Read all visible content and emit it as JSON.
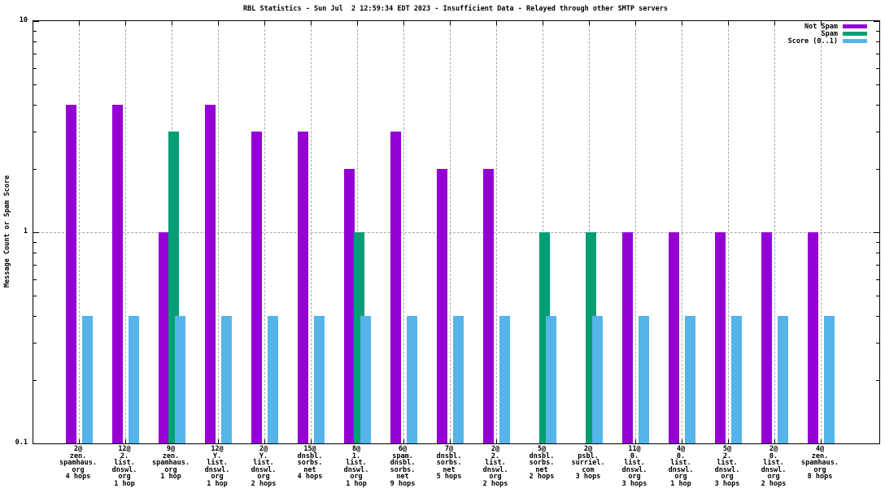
{
  "chart_data": {
    "type": "bar",
    "title": "RBL Statistics - Sun Jul  2 12:59:34 EDT 2023 - Insufficient Data - Relayed through other SMTP servers",
    "ylabel": "Message Count or Spam Score",
    "xlabel": "",
    "y_scale": "log10",
    "ylim": [
      0.1,
      10
    ],
    "yticks": [
      {
        "label": "0.1",
        "value": 0.1
      },
      {
        "label": "1",
        "value": 1
      },
      {
        "label": "10",
        "value": 10
      }
    ],
    "grid": true,
    "gridline_at_y": 1,
    "legend_position": "top-right-inside",
    "axis_color": "#000000",
    "grid_color": "#a9a9a9",
    "categories": [
      [
        "2@",
        "zen.",
        "spamhaus.",
        "org",
        "4 hops"
      ],
      [
        "12@",
        "2.",
        "list.",
        "dnswl.",
        "org",
        "1 hop"
      ],
      [
        "9@",
        "zen.",
        "spamhaus.",
        "org",
        "1 hop"
      ],
      [
        "12@",
        "Y.",
        "list.",
        "dnswl.",
        "org",
        "1 hop"
      ],
      [
        "2@",
        "Y.",
        "list.",
        "dnswl.",
        "org",
        "2 hops"
      ],
      [
        "15@",
        "dnsbl.",
        "sorbs.",
        "net",
        "4 hops"
      ],
      [
        "8@",
        "1.",
        "list.",
        "dnswl.",
        "org",
        "1 hop"
      ],
      [
        "6@",
        "spam.",
        "dnsbl.",
        "sorbs.",
        "net",
        "9 hops"
      ],
      [
        "7@",
        "dnsbl.",
        "sorbs.",
        "net",
        "5 hops"
      ],
      [
        "2@",
        "2.",
        "list.",
        "dnswl.",
        "org",
        "2 hops"
      ],
      [
        "5@",
        "dnsbl.",
        "sorbs.",
        "net",
        "2 hops"
      ],
      [
        "2@",
        "psbl.",
        "surriel.",
        "com",
        "3 hops"
      ],
      [
        "11@",
        "0.",
        "list.",
        "dnswl.",
        "org",
        "3 hops"
      ],
      [
        "4@",
        "0.",
        "list.",
        "dnswl.",
        "org",
        "1 hop"
      ],
      [
        "5@",
        "2.",
        "list.",
        "dnswl.",
        "org",
        "3 hops"
      ],
      [
        "2@",
        "0.",
        "list.",
        "dnswl.",
        "org",
        "2 hops"
      ],
      [
        "4@",
        "zen.",
        "spamhaus.",
        "org",
        "8 hops"
      ]
    ],
    "series": [
      {
        "name": "Not Spam",
        "color": "#9400d3",
        "values": [
          4,
          4,
          1,
          4,
          3,
          3,
          2,
          3,
          2,
          2,
          null,
          null,
          1,
          1,
          1,
          1,
          1
        ]
      },
      {
        "name": "Spam",
        "color": "#009e73",
        "values": [
          null,
          null,
          3,
          null,
          null,
          null,
          1,
          null,
          null,
          null,
          1,
          1,
          null,
          null,
          null,
          null,
          null
        ]
      },
      {
        "name": "Score (0..1)",
        "color": "#56b4e9",
        "values": [
          0.4,
          0.4,
          0.4,
          0.4,
          0.4,
          0.4,
          0.4,
          0.4,
          0.4,
          0.4,
          0.4,
          0.4,
          0.4,
          0.4,
          0.4,
          0.4,
          0.4
        ]
      }
    ]
  }
}
